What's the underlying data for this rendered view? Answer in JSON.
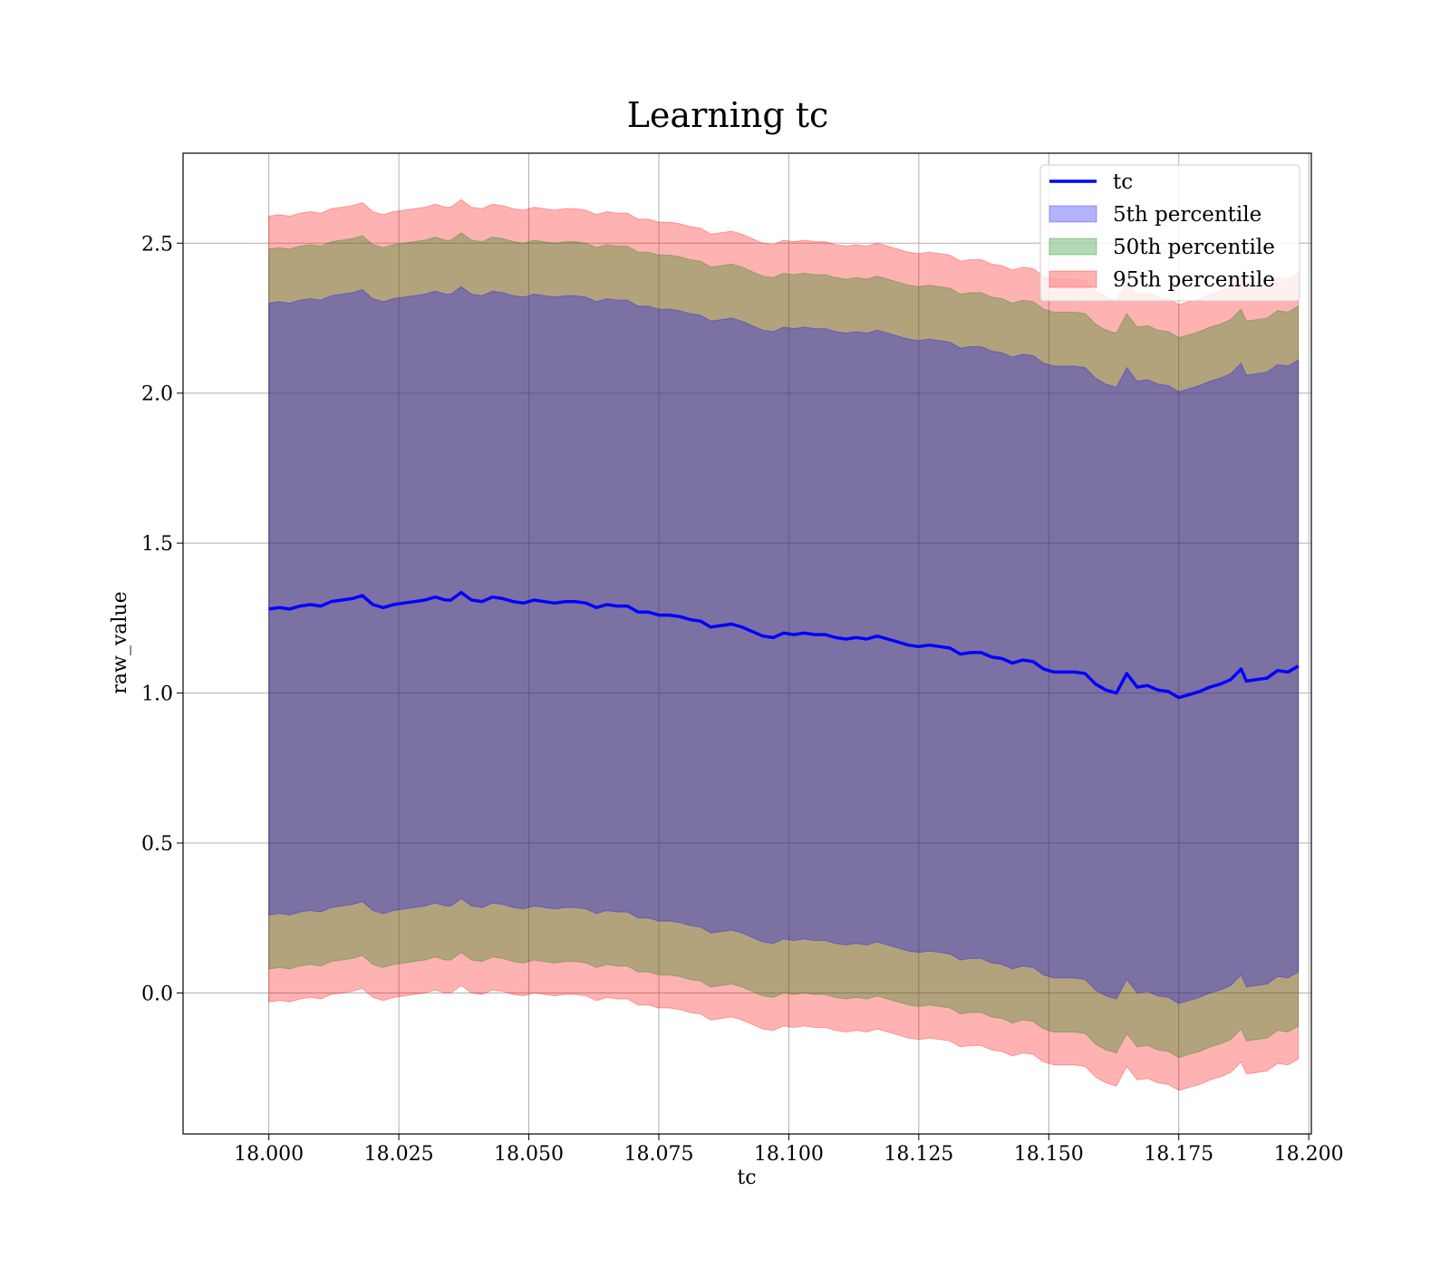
{
  "chart_data": {
    "type": "area",
    "title": "Learning tc",
    "xlabel": "tc",
    "ylabel": "raw_value",
    "xlim": [
      17.9835,
      18.2005
    ],
    "ylim": [
      -0.47,
      2.8
    ],
    "xticks": [
      18.0,
      18.025,
      18.05,
      18.075,
      18.1,
      18.125,
      18.15,
      18.175,
      18.2
    ],
    "xtick_labels": [
      "18.000",
      "18.025",
      "18.050",
      "18.075",
      "18.100",
      "18.125",
      "18.150",
      "18.175",
      "18.200"
    ],
    "yticks": [
      0.0,
      0.5,
      1.0,
      1.5,
      2.0,
      2.5
    ],
    "ytick_labels": [
      "0.0",
      "0.5",
      "1.0",
      "1.5",
      "2.0",
      "2.5"
    ],
    "grid": true,
    "legend_placement": "upper right",
    "x": [
      18.0,
      18.002,
      18.004,
      18.006,
      18.008,
      18.01,
      18.012,
      18.014,
      18.016,
      18.018,
      18.02,
      18.022,
      18.024,
      18.026,
      18.028,
      18.03,
      18.032,
      18.034,
      18.035,
      18.037,
      18.039,
      18.041,
      18.043,
      18.045,
      18.047,
      18.049,
      18.051,
      18.053,
      18.055,
      18.057,
      18.059,
      18.061,
      18.063,
      18.065,
      18.067,
      18.069,
      18.071,
      18.073,
      18.075,
      18.077,
      18.079,
      18.081,
      18.083,
      18.085,
      18.087,
      18.089,
      18.091,
      18.093,
      18.095,
      18.097,
      18.099,
      18.101,
      18.103,
      18.105,
      18.107,
      18.109,
      18.111,
      18.113,
      18.115,
      18.117,
      18.119,
      18.121,
      18.123,
      18.125,
      18.127,
      18.129,
      18.131,
      18.133,
      18.135,
      18.137,
      18.139,
      18.141,
      18.143,
      18.145,
      18.147,
      18.149,
      18.151,
      18.153,
      18.155,
      18.157,
      18.159,
      18.161,
      18.163,
      18.165,
      18.167,
      18.169,
      18.171,
      18.173,
      18.175,
      18.177,
      18.179,
      18.181,
      18.183,
      18.185,
      18.187,
      18.188,
      18.19,
      18.192,
      18.194,
      18.196,
      18.198
    ],
    "series": [
      {
        "name": "tc",
        "kind": "line",
        "color": "#0000ff",
        "values": [
          1.28,
          1.285,
          1.28,
          1.29,
          1.295,
          1.29,
          1.305,
          1.31,
          1.315,
          1.325,
          1.295,
          1.285,
          1.295,
          1.3,
          1.305,
          1.31,
          1.32,
          1.31,
          1.31,
          1.335,
          1.31,
          1.305,
          1.32,
          1.315,
          1.305,
          1.3,
          1.31,
          1.305,
          1.3,
          1.305,
          1.305,
          1.3,
          1.285,
          1.295,
          1.29,
          1.29,
          1.27,
          1.27,
          1.26,
          1.26,
          1.255,
          1.245,
          1.24,
          1.22,
          1.225,
          1.23,
          1.22,
          1.205,
          1.19,
          1.185,
          1.2,
          1.195,
          1.2,
          1.195,
          1.195,
          1.185,
          1.18,
          1.185,
          1.18,
          1.19,
          1.18,
          1.17,
          1.16,
          1.155,
          1.16,
          1.155,
          1.15,
          1.13,
          1.135,
          1.135,
          1.12,
          1.115,
          1.1,
          1.11,
          1.105,
          1.08,
          1.07,
          1.07,
          1.07,
          1.065,
          1.03,
          1.01,
          1.0,
          1.065,
          1.02,
          1.025,
          1.01,
          1.005,
          0.985,
          0.995,
          1.005,
          1.02,
          1.03,
          1.045,
          1.08,
          1.04,
          1.045,
          1.05,
          1.075,
          1.07,
          1.09
        ]
      },
      {
        "name": "5th percentile",
        "kind": "band",
        "color": "#0000ff",
        "lower_offset": -1.02,
        "upper_offset": 1.02
      },
      {
        "name": "50th percentile",
        "kind": "band",
        "color": "#008000",
        "lower_offset": -1.2,
        "upper_offset": 1.2
      },
      {
        "name": "95th percentile",
        "kind": "band",
        "color": "#ff0000",
        "lower_offset": -1.31,
        "upper_offset": 1.31
      }
    ],
    "annotations": []
  }
}
